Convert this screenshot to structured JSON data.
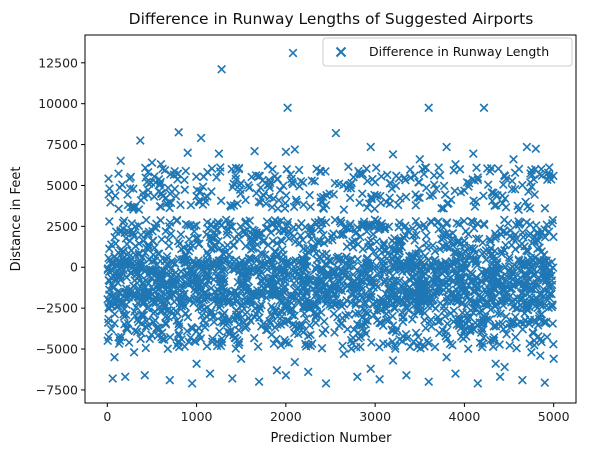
{
  "chart_data": {
    "type": "scatter",
    "title": "Difference in Runway Lengths of Suggested Airports",
    "xlabel": "Prediction Number",
    "ylabel": "Distance in Feet",
    "xlim": [
      -250,
      5250
    ],
    "ylim": [
      -8300,
      14200
    ],
    "xticks": [
      0,
      1000,
      2000,
      3000,
      4000,
      5000
    ],
    "xtick_labels": [
      "0",
      "1000",
      "2000",
      "3000",
      "4000",
      "5000"
    ],
    "yticks": [
      -7500,
      -5000,
      -2500,
      0,
      2500,
      5000,
      7500,
      10000,
      12500
    ],
    "ytick_labels": [
      "−7500",
      "−5000",
      "−2500",
      "0",
      "2500",
      "5000",
      "7500",
      "10000",
      "12500"
    ],
    "grid": false,
    "legend_position": "top-right",
    "marker": "x",
    "series": [
      {
        "name": "Difference in Runway Length",
        "color": "#1f77b4",
        "points": [
          [
            1280,
            12100
          ],
          [
            2080,
            13100
          ],
          [
            2020,
            9750
          ],
          [
            3600,
            9750
          ],
          [
            4220,
            9750
          ],
          [
            800,
            8250
          ],
          [
            1050,
            7900
          ],
          [
            370,
            7750
          ],
          [
            2560,
            8200
          ],
          [
            2100,
            7200
          ],
          [
            3800,
            7350
          ],
          [
            4700,
            7350
          ],
          [
            4800,
            7250
          ],
          [
            2950,
            7350
          ],
          [
            1650,
            7100
          ],
          [
            1250,
            6950
          ],
          [
            900,
            7000
          ],
          [
            2000,
            7050
          ],
          [
            3200,
            6900
          ],
          [
            4100,
            6950
          ],
          [
            150,
            6500
          ],
          [
            500,
            6400
          ],
          [
            3500,
            6600
          ],
          [
            4550,
            6600
          ],
          [
            600,
            6300
          ],
          [
            4950,
            6100
          ],
          [
            1800,
            6200
          ],
          [
            2700,
            6150
          ],
          [
            3900,
            6300
          ],
          [
            4300,
            6050
          ],
          [
            60,
            -6800
          ],
          [
            200,
            -6700
          ],
          [
            420,
            -6600
          ],
          [
            700,
            -6900
          ],
          [
            950,
            -7100
          ],
          [
            1150,
            -6500
          ],
          [
            1400,
            -6800
          ],
          [
            1700,
            -7000
          ],
          [
            2000,
            -6600
          ],
          [
            2250,
            -6400
          ],
          [
            2450,
            -7100
          ],
          [
            2800,
            -6700
          ],
          [
            3050,
            -6850
          ],
          [
            3350,
            -6600
          ],
          [
            3600,
            -7000
          ],
          [
            3900,
            -6500
          ],
          [
            4150,
            -7100
          ],
          [
            4400,
            -6700
          ],
          [
            4650,
            -6900
          ],
          [
            4900,
            -7050
          ],
          [
            80,
            -5500
          ],
          [
            300,
            -5200
          ],
          [
            1000,
            -5900
          ],
          [
            1500,
            -5600
          ],
          [
            2100,
            -5800
          ],
          [
            2650,
            -5300
          ],
          [
            3200,
            -5700
          ],
          [
            3800,
            -5500
          ],
          [
            4350,
            -5900
          ],
          [
            4850,
            -5400
          ],
          [
            5000,
            -5600
          ],
          [
            4750,
            -5200
          ],
          [
            4450,
            -6100
          ],
          [
            2950,
            -6200
          ],
          [
            1900,
            -6300
          ]
        ]
      }
    ],
    "dense_band": {
      "x_range": [
        0,
        5000
      ],
      "y_range": [
        -4000,
        6000
      ],
      "note_hidden": true
    }
  }
}
